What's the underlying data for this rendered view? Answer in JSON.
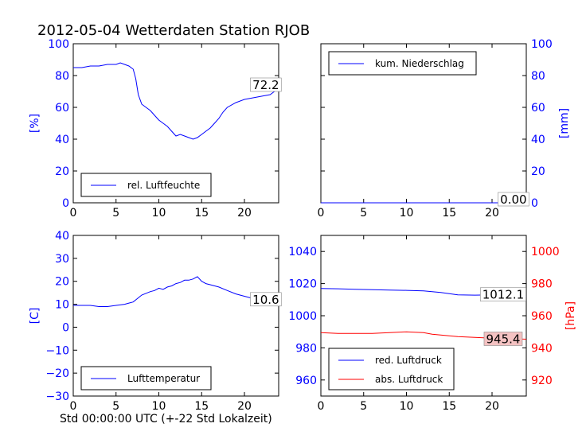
{
  "figure_title": "2012-05-04 Wetterdaten Station RJOB",
  "chart_data": [
    {
      "id": "humidity",
      "type": "line",
      "xlim": [
        0,
        24
      ],
      "ylim": [
        0,
        100
      ],
      "xticks": [
        "0",
        "5",
        "10",
        "15",
        "20"
      ],
      "yticks": [
        "0",
        "20",
        "40",
        "60",
        "80",
        "100"
      ],
      "ylabel": "[%]",
      "ylabel_color": "#0000ff",
      "ytick_color": "#0000ff",
      "legend_location": "lower-center",
      "annotation": {
        "text": "72.2",
        "x": 22.5,
        "y": 74,
        "bg": "#ffffff"
      },
      "series": [
        {
          "name": "rel. Luftfeuchte",
          "color": "#0000ff",
          "x": [
            0,
            1,
            2,
            3,
            4,
            5,
            5.5,
            6,
            6.5,
            7,
            7.3,
            7.6,
            8,
            8.5,
            9,
            9.5,
            10,
            10.5,
            11,
            11.5,
            12,
            12.5,
            13,
            13.5,
            14,
            14.5,
            15,
            15.5,
            16,
            16.5,
            17,
            17.5,
            18,
            19,
            20,
            21,
            22,
            23,
            24
          ],
          "values": [
            85,
            85,
            86,
            86,
            87,
            87,
            88,
            87,
            86,
            84,
            78,
            68,
            62,
            60,
            58,
            55,
            52,
            50,
            48,
            45,
            42,
            43,
            42,
            41,
            40,
            41,
            43,
            45,
            47,
            50,
            53,
            57,
            60,
            63,
            65,
            66,
            67,
            68,
            72
          ]
        }
      ]
    },
    {
      "id": "precip",
      "type": "line",
      "xlim": [
        0,
        24
      ],
      "ylim": [
        0,
        100
      ],
      "xticks": [
        "0",
        "5",
        "10",
        "15",
        "20"
      ],
      "yticks": [
        "0",
        "20",
        "40",
        "60",
        "80",
        "100"
      ],
      "ylabel": "[mm]",
      "ylabel_color": "#0000ff",
      "ytick_color": "#0000ff",
      "y_axis_side": "right",
      "legend_location": "upper-center",
      "annotation": {
        "text": "0.00",
        "x": 22.5,
        "y": 2,
        "bg": "#ffffff"
      },
      "series": [
        {
          "name": "kum. Niederschlag",
          "color": "#0000ff",
          "x": [
            0,
            24
          ],
          "values": [
            0,
            0
          ]
        }
      ]
    },
    {
      "id": "temperature",
      "type": "line",
      "xlim": [
        0,
        24
      ],
      "ylim": [
        -30,
        40
      ],
      "xticks": [
        "0",
        "5",
        "10",
        "15",
        "20"
      ],
      "yticks": [
        "−30",
        "−20",
        "−10",
        "0",
        "10",
        "20",
        "30",
        "40"
      ],
      "ylabel": "[C]",
      "ylabel_color": "#0000ff",
      "ytick_color": "#0000ff",
      "xlabel": "Std 00:00:00 UTC (+-22 Std Lokalzeit)",
      "legend_location": "lower-center",
      "annotation": {
        "text": "10.6",
        "x": 22.5,
        "y": 12,
        "bg": "#ffffff"
      },
      "series": [
        {
          "name": "Lufttemperatur",
          "color": "#0000ff",
          "x": [
            0,
            1,
            2,
            3,
            4,
            5,
            6,
            6.5,
            7,
            7.5,
            8,
            9,
            9.5,
            10,
            10.5,
            11,
            11.5,
            12,
            12.5,
            13,
            13.5,
            14,
            14.5,
            15,
            15.5,
            16,
            17,
            18,
            19,
            20,
            21,
            22,
            23,
            24
          ],
          "values": [
            9.5,
            9.5,
            9.5,
            9.0,
            9.0,
            9.5,
            10.0,
            10.5,
            11.0,
            12.5,
            14.0,
            15.5,
            16.0,
            17.0,
            16.5,
            17.5,
            18.0,
            19.0,
            19.5,
            20.5,
            20.5,
            21.0,
            22.0,
            20.0,
            19.0,
            18.5,
            17.5,
            16.0,
            14.5,
            13.5,
            12.5,
            12.0,
            11.5,
            10.6
          ]
        }
      ]
    },
    {
      "id": "pressure",
      "type": "line",
      "xlim": [
        0,
        24
      ],
      "ylim": [
        950,
        1050
      ],
      "xticks": [
        "0",
        "5",
        "10",
        "15",
        "20"
      ],
      "yticks": [
        "960",
        "980",
        "1000",
        "1020",
        "1040"
      ],
      "ytick_color": "#0000ff",
      "ylabel": "",
      "y2lim": [
        910,
        1010
      ],
      "y2ticks": [
        "920",
        "940",
        "960",
        "980",
        "1000"
      ],
      "y2label": "[hPa]",
      "y2label_color": "#ff0000",
      "y2tick_color": "#ff0000",
      "legend_location": "lower-left",
      "annotations": [
        {
          "text": "1012.1",
          "x": 21.3,
          "y": 1013,
          "axis": "left",
          "bg": "#ffffff"
        },
        {
          "text": "945.4",
          "x": 21.3,
          "y": 945.4,
          "axis": "right",
          "bg": "#f4c2c2"
        }
      ],
      "series": [
        {
          "name": "red. Luftdruck",
          "color": "#0000ff",
          "axis": "left",
          "x": [
            0,
            2,
            4,
            6,
            8,
            10,
            12,
            14,
            16,
            18,
            20,
            22,
            24
          ],
          "values": [
            1017,
            1016.8,
            1016.5,
            1016.2,
            1016,
            1015.8,
            1015.5,
            1014.5,
            1013,
            1012.8,
            1013,
            1012.5,
            1012.1
          ]
        },
        {
          "name": "abs. Luftdruck",
          "color": "#ff0000",
          "axis": "right",
          "x": [
            0,
            2,
            4,
            6,
            8,
            10,
            12,
            13,
            14,
            16,
            18,
            20,
            22,
            24
          ],
          "values": [
            949.5,
            949,
            949,
            949,
            949.5,
            950,
            949.5,
            948.5,
            948,
            947,
            946.5,
            946,
            945.8,
            945.4
          ]
        }
      ]
    }
  ]
}
